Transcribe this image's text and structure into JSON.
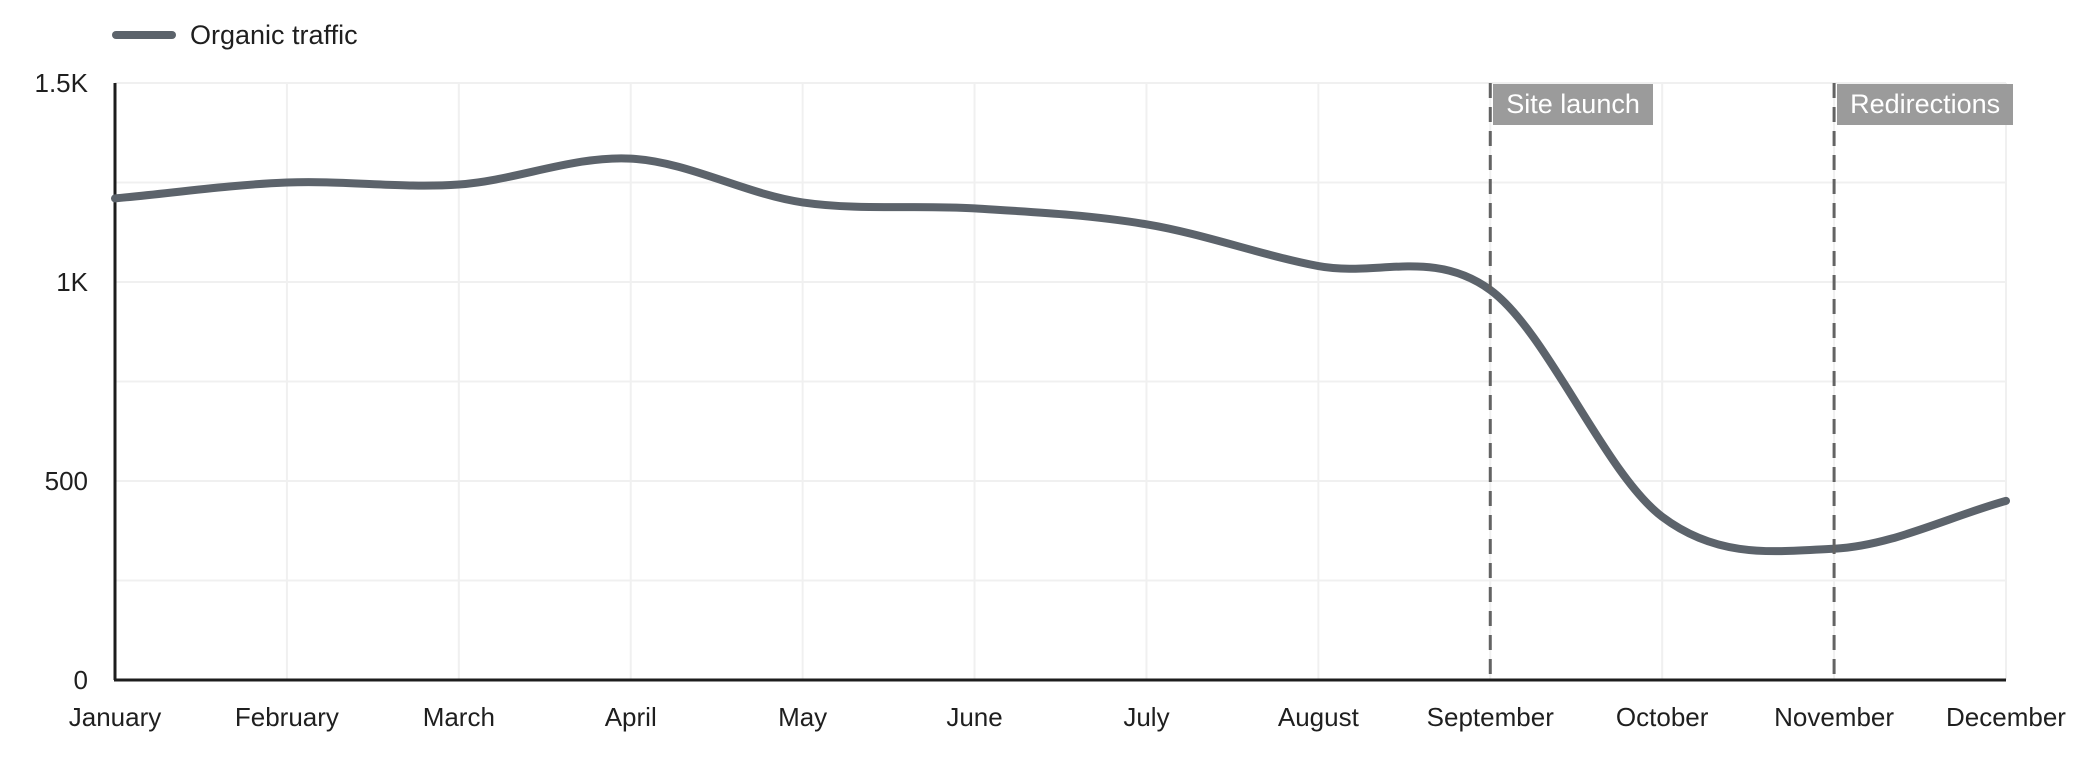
{
  "legend": {
    "series_label": "Organic traffic"
  },
  "chart_data": {
    "type": "line",
    "title": "",
    "xlabel": "",
    "ylabel": "",
    "categories": [
      "January",
      "February",
      "March",
      "April",
      "May",
      "June",
      "July",
      "August",
      "September",
      "October",
      "November",
      "December"
    ],
    "series": [
      {
        "name": "Organic traffic",
        "values": [
          1210,
          1250,
          1245,
          1310,
          1200,
          1185,
          1145,
          1040,
          980,
          410,
          330,
          450
        ]
      }
    ],
    "ylim": [
      0,
      1500
    ],
    "y_grid_step": 250,
    "grid": true,
    "line_smoothing": "catmull-rom",
    "legend_position": "top-left",
    "y_ticks": [
      {
        "label": "1.5K",
        "value": 1500
      },
      {
        "label": "1K",
        "value": 1000
      },
      {
        "label": "500",
        "value": 500
      },
      {
        "label": "0",
        "value": 0
      }
    ],
    "annotations": [
      {
        "label": "Site launch",
        "category": "September",
        "style": "dashed-vertical-line"
      },
      {
        "label": "Redirections",
        "category": "November",
        "style": "dashed-vertical-line"
      }
    ],
    "colors": {
      "line": "#5c636b",
      "grid": "#f0f0f0",
      "axis": "#1d1d1d",
      "dashed_line": "#636363",
      "annotation_label_bg": "#9b9b9b",
      "annotation_label_text": "#ffffff",
      "tick_text": "#1f1f1f"
    }
  }
}
